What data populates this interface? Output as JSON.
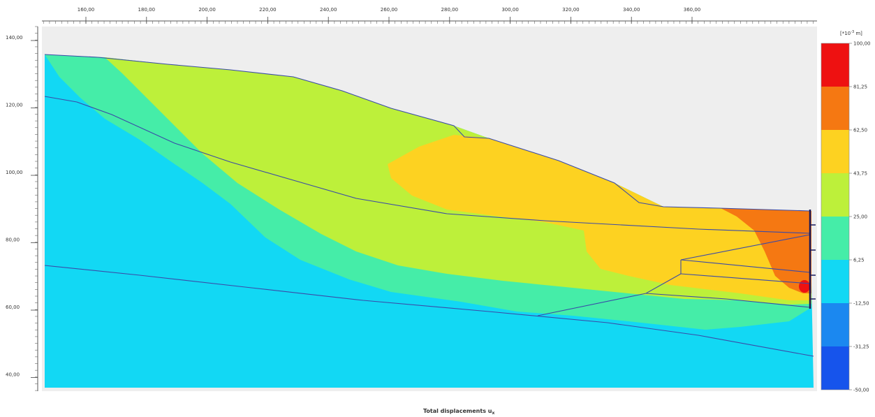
{
  "plot": {
    "caption_main": "Total displacements u",
    "caption_sub": "x",
    "x_ticks": [
      "160,00",
      "180,00",
      "200,00",
      "220,00",
      "240,00",
      "260,00",
      "280,00",
      "300,00",
      "320,00",
      "340,00",
      "360,00"
    ],
    "y_ticks": [
      "140,00",
      "120,00",
      "100,00",
      "80,00",
      "60,00",
      "40,00"
    ]
  },
  "legend": {
    "unit_prefix": "[*10",
    "unit_exp": "-3",
    "unit_suffix": " m]",
    "labels": [
      "100,00",
      "81,25",
      "62,50",
      "43,75",
      "25,00",
      "6,25",
      "-12,50",
      "-31,25",
      "-50,00"
    ],
    "colors": [
      "#ee1111",
      "#f57812",
      "#fdd221",
      "#bdf03a",
      "#45eda8",
      "#12d8f4",
      "#1b88f0",
      "#1654ec",
      "#1010e4"
    ]
  },
  "colors": {
    "plot_background": "#eeeeee",
    "contour_lines": "#3a4aa8",
    "structure": "#1a1a5a"
  }
}
